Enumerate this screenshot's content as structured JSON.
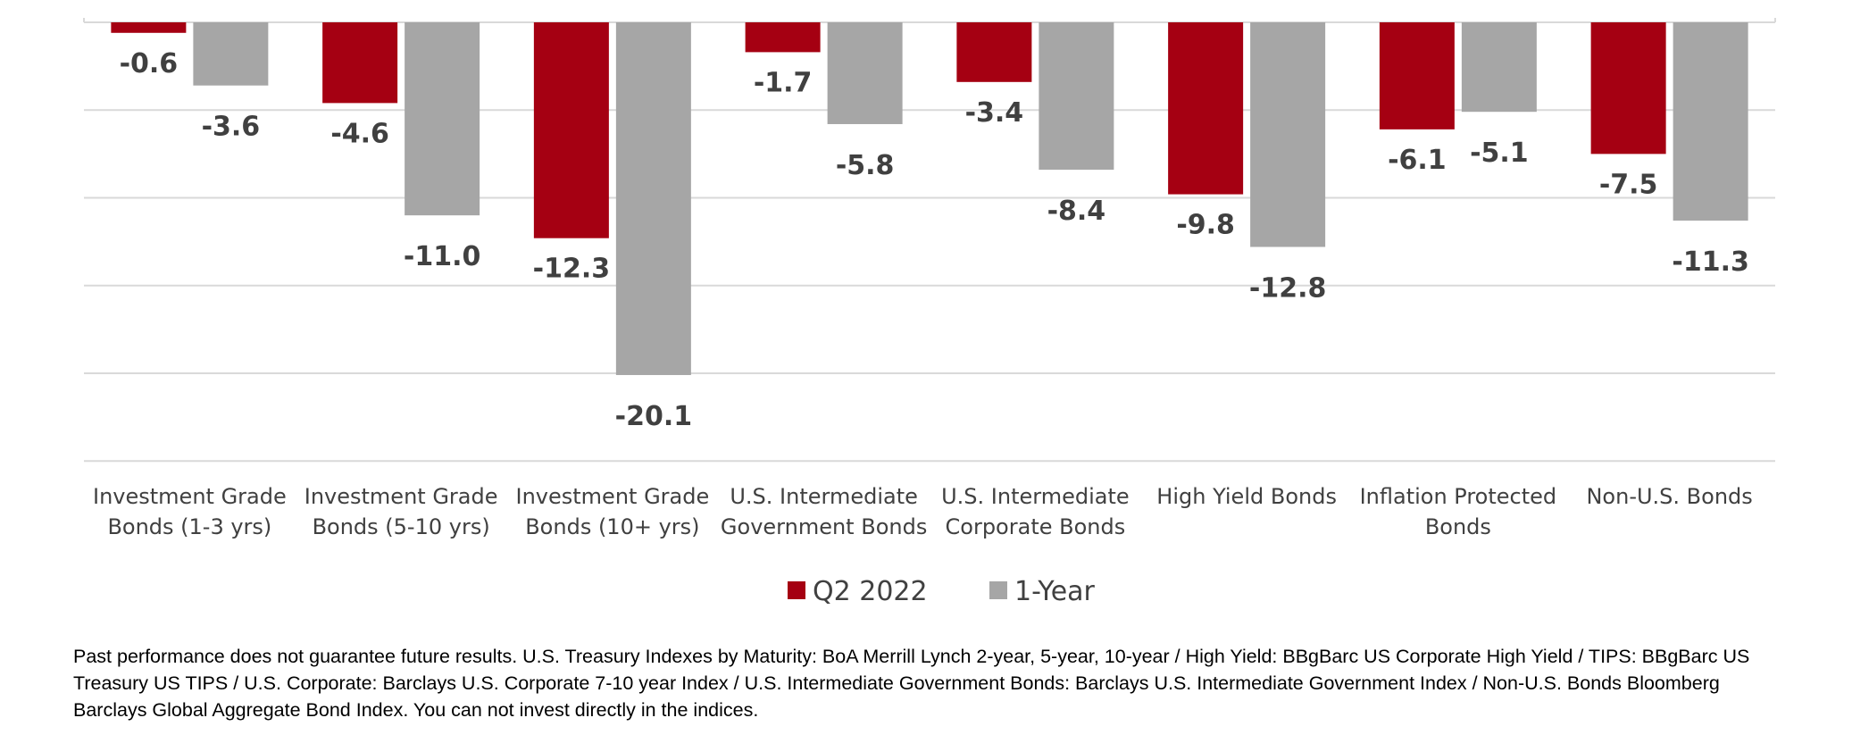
{
  "chart_data": {
    "type": "bar",
    "categories": [
      [
        "Investment Grade",
        "Bonds (1-3 yrs)"
      ],
      [
        "Investment Grade",
        "Bonds (5-10 yrs)"
      ],
      [
        "Investment Grade",
        "Bonds (10+ yrs)"
      ],
      [
        "U.S. Intermediate",
        "Government Bonds"
      ],
      [
        "U.S. Intermediate",
        "Corporate Bonds"
      ],
      [
        "High Yield Bonds"
      ],
      [
        "Inflation Protected",
        "Bonds"
      ],
      [
        "Non-U.S. Bonds"
      ]
    ],
    "series": [
      {
        "name": "Q2 2022",
        "color": "#a50012",
        "values": [
          -0.6,
          -4.6,
          -12.3,
          -1.7,
          -3.4,
          -9.8,
          -6.1,
          -7.5
        ]
      },
      {
        "name": "1-Year",
        "color": "#a6a6a6",
        "values": [
          -3.6,
          -11.0,
          -20.1,
          -5.8,
          -8.4,
          -12.8,
          -5.1,
          -11.3
        ]
      }
    ],
    "ylim": [
      -25,
      0
    ],
    "grid": true,
    "legend": "bottom-center",
    "value_format_decimals": 1
  },
  "footnote": "Past performance does not guarantee future results.   U.S. Treasury Indexes by Maturity: BoA Merrill Lynch 2-year, 5-year, 10-year / High Yield: BBgBarc US Corporate High Yield / TIPS: BBgBarc US Treasury US TIPS / U.S. Corporate:  Barclays U.S. Corporate 7-10 year Index / U.S. Intermediate Government Bonds:  Barclays U.S. Intermediate Government Index / Non-U.S. Bonds Bloomberg Barclays Global Aggregate Bond Index.  You can not invest directly in the indices."
}
